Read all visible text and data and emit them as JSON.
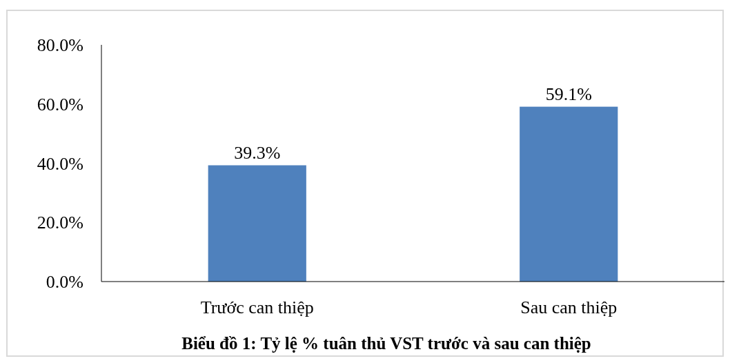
{
  "chart_data": {
    "type": "bar",
    "title": "Biểu đồ 1: Tỷ lệ % tuân thủ VST trước và sau can thiệp",
    "categories": [
      "Trước can thiệp",
      "Sau can thiệp"
    ],
    "values": [
      39.3,
      59.1
    ],
    "color": "#4f81bd",
    "value_labels": [
      "39.3%",
      "59.1%"
    ],
    "ylim": [
      0,
      80
    ],
    "yticks": [
      {
        "value": 0,
        "label": "0.0%"
      },
      {
        "value": 20,
        "label": "20.0%"
      },
      {
        "value": 40,
        "label": "40.0%"
      },
      {
        "value": 60,
        "label": "60.0%"
      },
      {
        "value": 80,
        "label": "80.0%"
      }
    ],
    "grid": false
  }
}
